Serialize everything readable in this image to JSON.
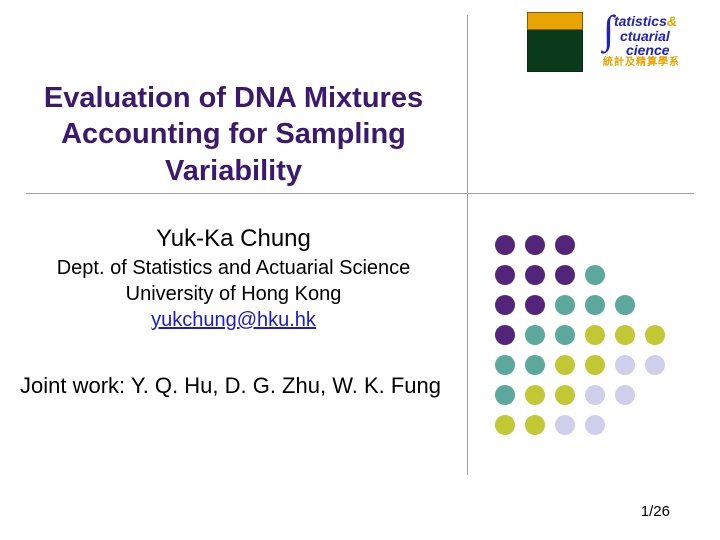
{
  "logos": {
    "statistics": {
      "line1a": "tatistics",
      "line1b": "&",
      "line2a": "ctuarial",
      "line3a": "cience",
      "cn": "統計及精算學系"
    }
  },
  "title": {
    "line1": "Evaluation of DNA Mixtures",
    "line2": "Accounting for Sampling Variability",
    "color": "#3b1a6e"
  },
  "author": {
    "name": "Yuk-Ka Chung",
    "dept": "Dept. of Statistics and Actuarial Science",
    "university": "University of Hong Kong",
    "email": "yukchung@hku.hk"
  },
  "joint_work": "Joint work: Y. Q. Hu, D. G. Zhu, W. K. Fung",
  "page_number": "1/26",
  "dot_grid": {
    "colors": {
      "purple": "#52257a",
      "teal": "#5da89c",
      "olive": "#c2c833",
      "lav": "#cfcfec",
      "none": "transparent"
    },
    "layout": [
      [
        "purple",
        "purple",
        "purple",
        "none",
        "none",
        "none"
      ],
      [
        "purple",
        "purple",
        "purple",
        "teal",
        "none",
        "none"
      ],
      [
        "purple",
        "purple",
        "teal",
        "teal",
        "teal",
        "none"
      ],
      [
        "purple",
        "teal",
        "teal",
        "olive",
        "olive",
        "olive"
      ],
      [
        "teal",
        "teal",
        "olive",
        "olive",
        "lav",
        "lav"
      ],
      [
        "teal",
        "olive",
        "olive",
        "lav",
        "lav",
        "none"
      ],
      [
        "olive",
        "olive",
        "lav",
        "lav",
        "none",
        "none"
      ]
    ]
  }
}
